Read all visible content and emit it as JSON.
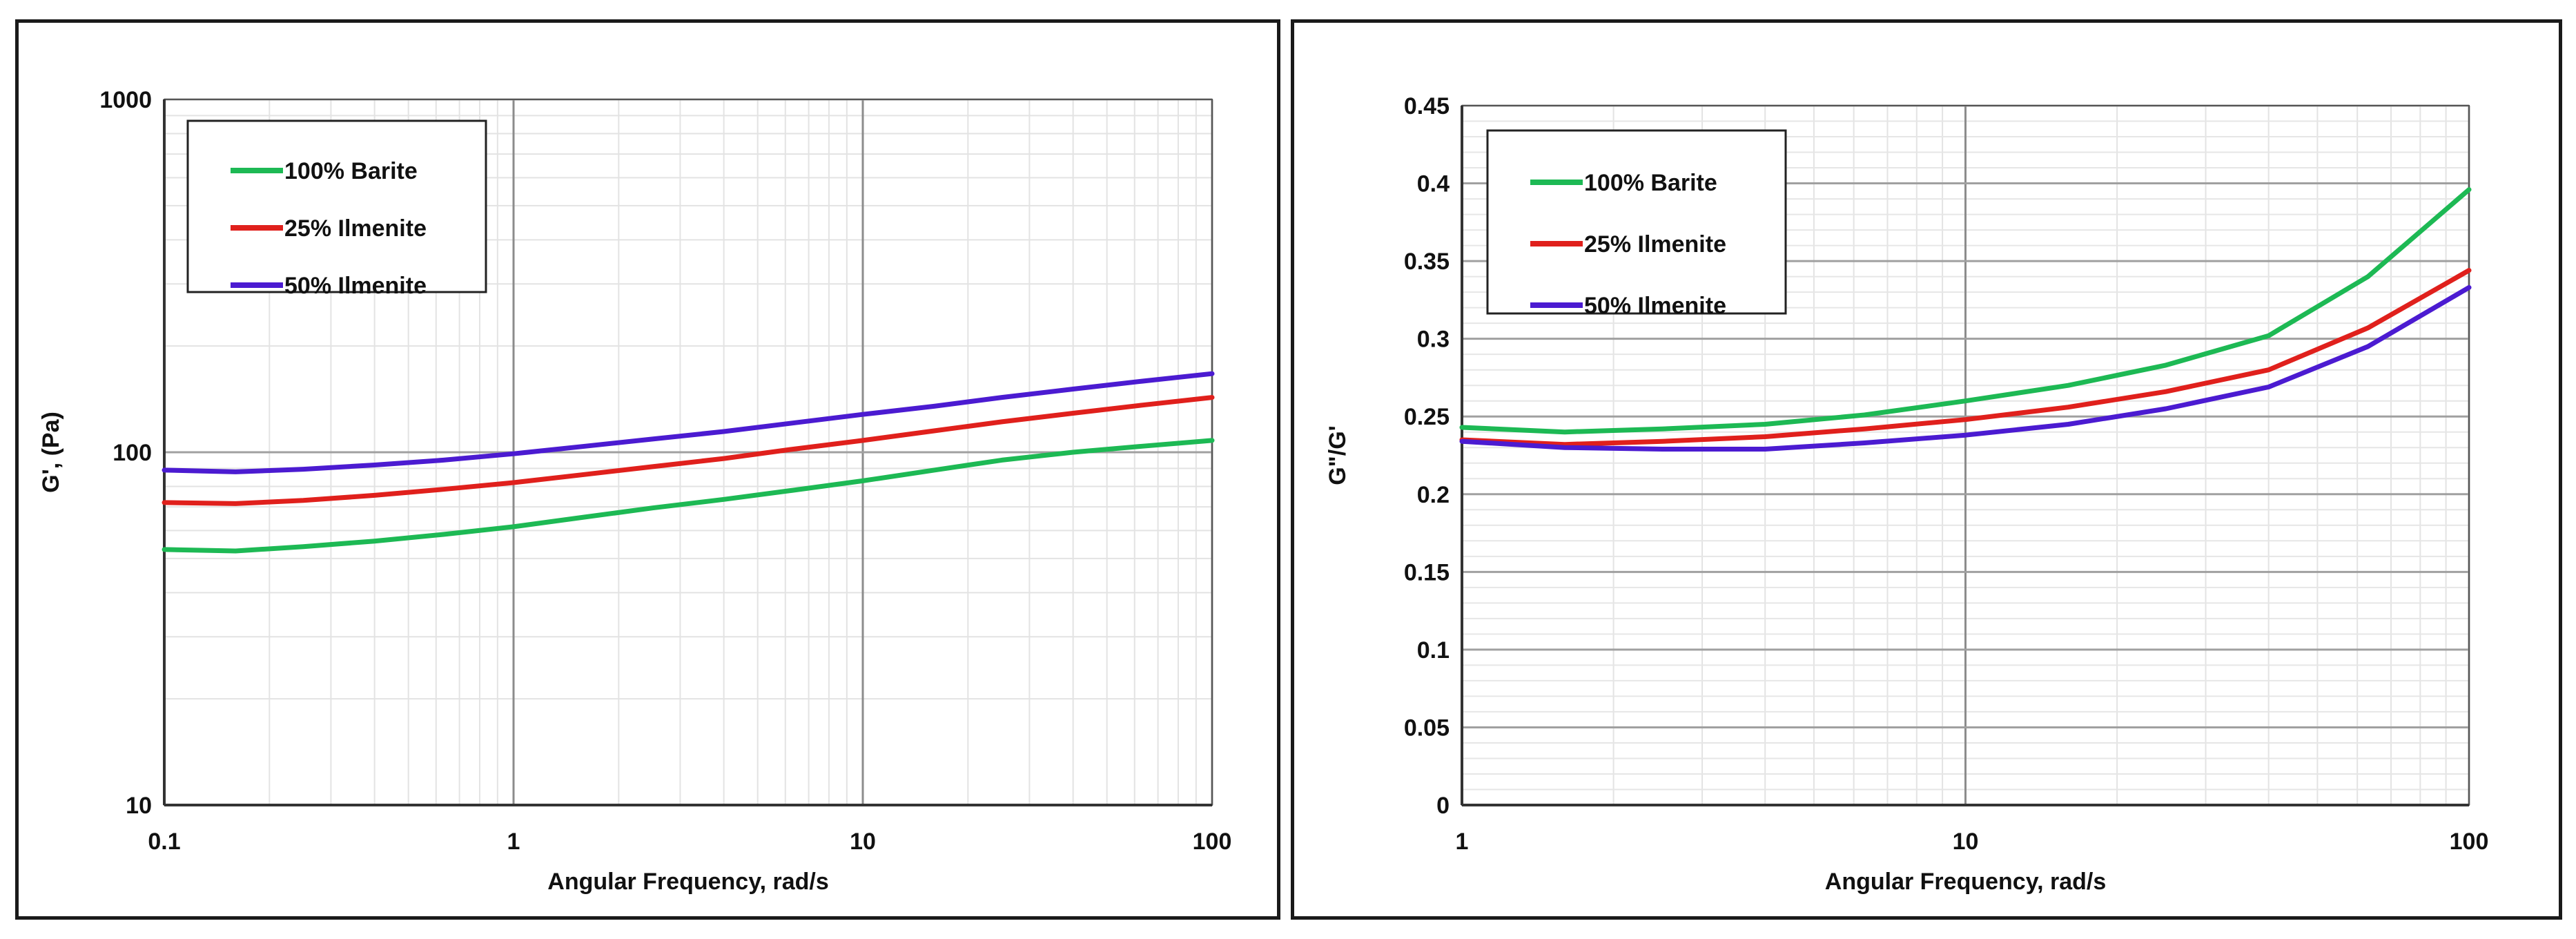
{
  "chart_data": [
    {
      "type": "line",
      "xscale": "log",
      "yscale": "log",
      "xlabel": "Angular Frequency, rad/s",
      "ylabel": "G', (Pa)",
      "xlim": [
        0.1,
        100
      ],
      "ylim": [
        10,
        1000
      ],
      "xticks": [
        0.1,
        1,
        10,
        100
      ],
      "xtick_labels": [
        "0.1",
        "1",
        "10",
        "100"
      ],
      "yticks": [
        10,
        100,
        1000
      ],
      "ytick_labels": [
        "10",
        "100",
        "1000"
      ],
      "grid": true,
      "legend_position": "top-left",
      "series": [
        {
          "name": "100% Barite",
          "color": "#1db954",
          "x": [
            0.1,
            0.16,
            0.25,
            0.4,
            0.63,
            1,
            1.6,
            2.5,
            4,
            6.3,
            10,
            16,
            25,
            40,
            63,
            100
          ],
          "y": [
            53,
            52.5,
            54,
            56,
            58.5,
            61.5,
            65.5,
            69.5,
            73.5,
            78,
            83,
            89,
            95,
            100,
            104,
            108
          ]
        },
        {
          "name": "25% Ilmenite",
          "color": "#e0201c",
          "x": [
            0.1,
            0.16,
            0.25,
            0.4,
            0.63,
            1,
            1.6,
            2.5,
            4,
            6.3,
            10,
            16,
            25,
            40,
            63,
            100
          ],
          "y": [
            72,
            71.5,
            73,
            75.5,
            78.5,
            82,
            86.5,
            91,
            96,
            102,
            108,
            115,
            122,
            129,
            136,
            143
          ]
        },
        {
          "name": "50% Ilmenite",
          "color": "#4b1bd1",
          "x": [
            0.1,
            0.16,
            0.25,
            0.4,
            0.63,
            1,
            1.6,
            2.5,
            4,
            6.3,
            10,
            16,
            25,
            40,
            63,
            100
          ],
          "y": [
            89,
            88,
            89.5,
            92,
            95,
            99,
            104,
            109,
            114.5,
            121,
            128,
            135,
            143,
            151,
            159,
            167
          ]
        }
      ]
    },
    {
      "type": "line",
      "xscale": "log",
      "yscale": "linear",
      "xlabel": "Angular Frequency, rad/s",
      "ylabel": "G\"/G'",
      "xlim": [
        1,
        100
      ],
      "ylim": [
        0,
        0.45
      ],
      "xticks": [
        1,
        10,
        100
      ],
      "xtick_labels": [
        "1",
        "10",
        "100"
      ],
      "yticks": [
        0,
        0.05,
        0.1,
        0.15,
        0.2,
        0.25,
        0.3,
        0.35,
        0.4,
        0.45
      ],
      "ytick_labels": [
        "0",
        "0.05",
        "0.1",
        "0.15",
        "0.2",
        "0.25",
        "0.3",
        "0.35",
        "0.4",
        "0.45"
      ],
      "grid": true,
      "legend_position": "top-left",
      "series": [
        {
          "name": "100% Barite",
          "color": "#1db954",
          "x": [
            1,
            1.6,
            2.5,
            4,
            6.3,
            10,
            16,
            25,
            40,
            63,
            100
          ],
          "y": [
            0.243,
            0.24,
            0.242,
            0.245,
            0.251,
            0.26,
            0.27,
            0.283,
            0.302,
            0.34,
            0.396
          ]
        },
        {
          "name": "25% Ilmenite",
          "color": "#e0201c",
          "x": [
            1,
            1.6,
            2.5,
            4,
            6.3,
            10,
            16,
            25,
            40,
            63,
            100
          ],
          "y": [
            0.235,
            0.232,
            0.234,
            0.237,
            0.242,
            0.248,
            0.256,
            0.266,
            0.28,
            0.307,
            0.344
          ]
        },
        {
          "name": "50% Ilmenite",
          "color": "#4b1bd1",
          "x": [
            1,
            1.6,
            2.5,
            4,
            6.3,
            10,
            16,
            25,
            40,
            63,
            100
          ],
          "y": [
            0.234,
            0.23,
            0.229,
            0.229,
            0.233,
            0.238,
            0.245,
            0.255,
            0.269,
            0.295,
            0.333
          ]
        }
      ]
    }
  ]
}
